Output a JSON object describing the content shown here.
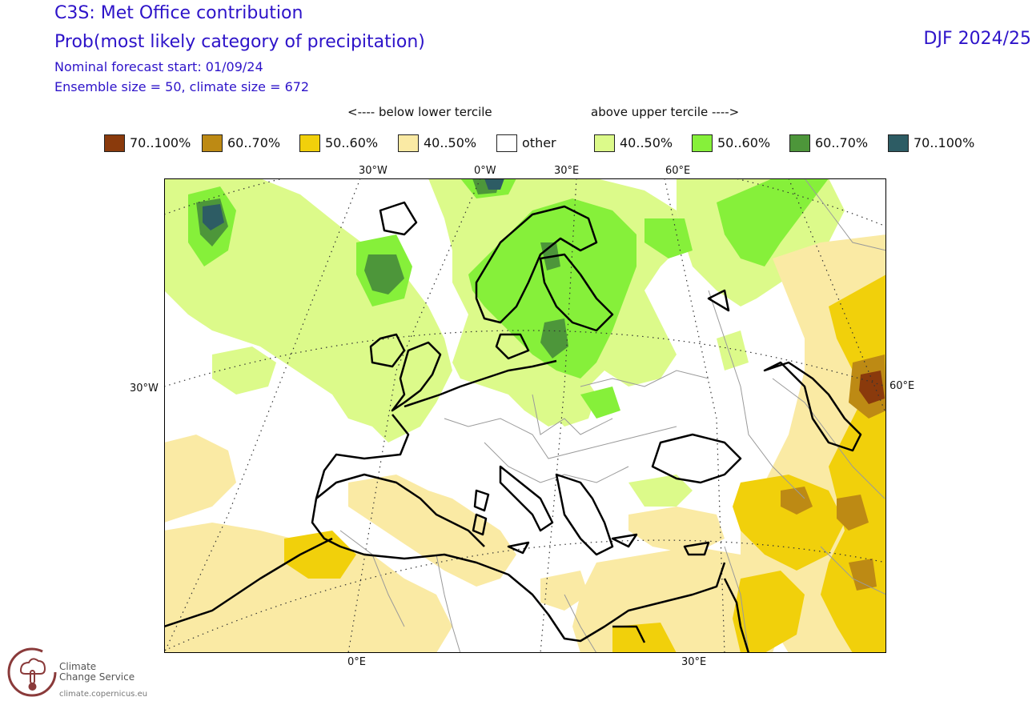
{
  "header": {
    "title": "C3S: Met Office contribution",
    "subtitle": "Prob(most likely category of precipitation)",
    "forecast_start": "Nominal forecast start: 01/09/24",
    "ensemble": "Ensemble size = 50, climate size = 672",
    "season": "DJF 2024/25"
  },
  "legend": {
    "below_label": "<---- below lower tercile",
    "above_label": "above upper tercile ---->",
    "items": [
      {
        "label": "70..100%",
        "color": "#8a3a0c"
      },
      {
        "label": "60..70%",
        "color": "#bd8a14"
      },
      {
        "label": "50..60%",
        "color": "#f1d00b"
      },
      {
        "label": "40..50%",
        "color": "#faeaa4"
      },
      {
        "label": "other",
        "color": "#ffffff"
      },
      {
        "label": "40..50%",
        "color": "#dcfa8a"
      },
      {
        "label": "50..60%",
        "color": "#86f03a"
      },
      {
        "label": "60..70%",
        "color": "#4d963a"
      },
      {
        "label": "70..100%",
        "color": "#2d5c64"
      }
    ]
  },
  "map": {
    "labels": {
      "lon_30w_top": "30°W",
      "lon_0w_top": "0°W",
      "lon_30e_top": "30°E",
      "lon_60e_top": "60°E",
      "lat_left": "30°W",
      "lat_right": "60°E",
      "lon_0e_bottom": "0°E",
      "lon_30e_bottom": "30°E"
    }
  },
  "logo": {
    "line1": "Climate",
    "line2": "Change Service",
    "url": "climate.copernicus.eu",
    "icon": "thermometer-cloud-icon"
  }
}
